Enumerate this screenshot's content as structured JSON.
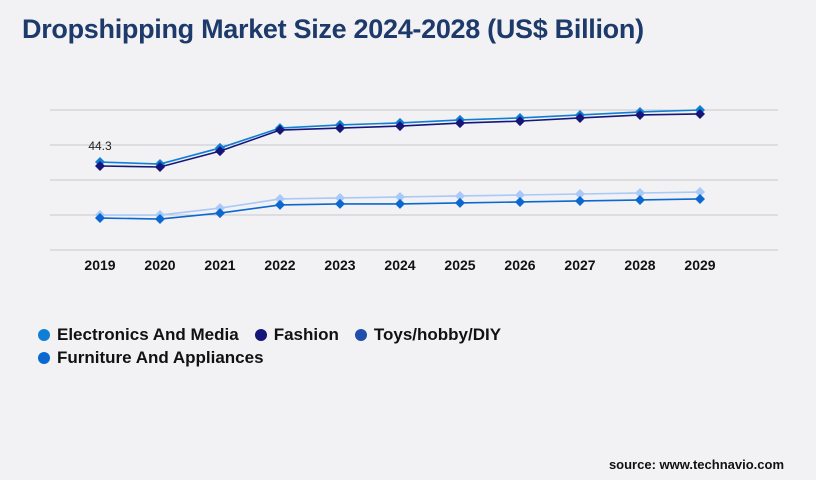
{
  "chart_data": {
    "type": "line",
    "title": "Dropshipping Market Size 2024-2028 (US$ Billion)",
    "xlabel": "",
    "ylabel": "",
    "categories": [
      "2019",
      "2020",
      "2021",
      "2022",
      "2023",
      "2024",
      "2025",
      "2026",
      "2027",
      "2028",
      "2029"
    ],
    "ylim": [
      0,
      70.5
    ],
    "grid": true,
    "legend_position": "bottom-left",
    "series": [
      {
        "name": "Electronics And Media",
        "color": "#0f7fd6",
        "legend_color": "#0f7fd6",
        "values": [
          44.3,
          43.3,
          51.4,
          61.4,
          63.0,
          64.0,
          65.5,
          66.5,
          68.0,
          69.5,
          70.5
        ]
      },
      {
        "name": "Fashion",
        "color": "#15157a",
        "legend_color": "#15157a",
        "values": [
          42.3,
          41.8,
          49.8,
          60.4,
          61.4,
          62.4,
          63.9,
          64.9,
          66.5,
          68.0,
          68.5
        ]
      },
      {
        "name": "Toys/hobby/DIY",
        "color": "#a9c9f7",
        "legend_color": "#1f4faa",
        "values": [
          17.6,
          17.6,
          21.1,
          25.7,
          26.2,
          26.7,
          27.2,
          27.7,
          28.2,
          28.7,
          29.2
        ]
      },
      {
        "name": "Furniture And Appliances",
        "color": "#0a68d0",
        "legend_color": "#0a68d0",
        "values": [
          16.1,
          15.6,
          18.6,
          22.7,
          23.2,
          23.2,
          23.7,
          24.2,
          24.7,
          25.2,
          25.7
        ]
      }
    ],
    "annotations": [
      {
        "series": "Electronics And Media",
        "x": "2019",
        "text": "44.3"
      }
    ]
  },
  "source": "source: www.technavio.com"
}
